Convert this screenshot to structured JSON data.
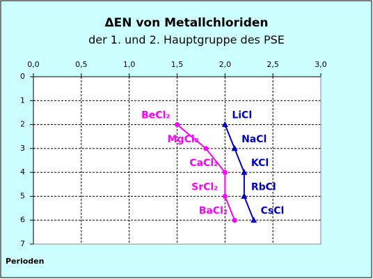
{
  "chart_data": {
    "type": "scatter",
    "title": "ΔEN von Metallchloriden",
    "subtitle": "der 1. und 2. Hauptgruppe des PSE",
    "y_label": "Perioden",
    "xlim": [
      0,
      3
    ],
    "xticks": [
      {
        "value": 0,
        "label": "0,0"
      },
      {
        "value": 0.5,
        "label": "0,5"
      },
      {
        "value": 1,
        "label": "1,0"
      },
      {
        "value": 1.5,
        "label": "1,5"
      },
      {
        "value": 2,
        "label": "2,0"
      },
      {
        "value": 2.5,
        "label": "2,5"
      },
      {
        "value": 3,
        "label": "3,0"
      }
    ],
    "ylim": [
      0,
      7
    ],
    "yticks": [
      0,
      1,
      2,
      3,
      4,
      5,
      6,
      7
    ],
    "y_inverted": true,
    "x_axis_position": "top",
    "grid": true,
    "series": [
      {
        "color": "#ff00ff",
        "marker": "circle",
        "label_side": "left",
        "x": [
          1.5,
          1.8,
          2.0,
          2.0,
          2.1
        ],
        "values": [
          2,
          3,
          4,
          5,
          6
        ],
        "labels": [
          "BeCl₂",
          "MgCl₂",
          "CaCl₂",
          "SrCl₂",
          "BaCl₂"
        ]
      },
      {
        "color": "#0000cc",
        "marker": "triangle",
        "label_side": "right",
        "x": [
          2.0,
          2.1,
          2.2,
          2.2,
          2.3
        ],
        "values": [
          2,
          3,
          4,
          5,
          6
        ],
        "labels": [
          "LiCl",
          "NaCl",
          "KCl",
          "RbCl",
          "CsCl"
        ]
      }
    ]
  }
}
